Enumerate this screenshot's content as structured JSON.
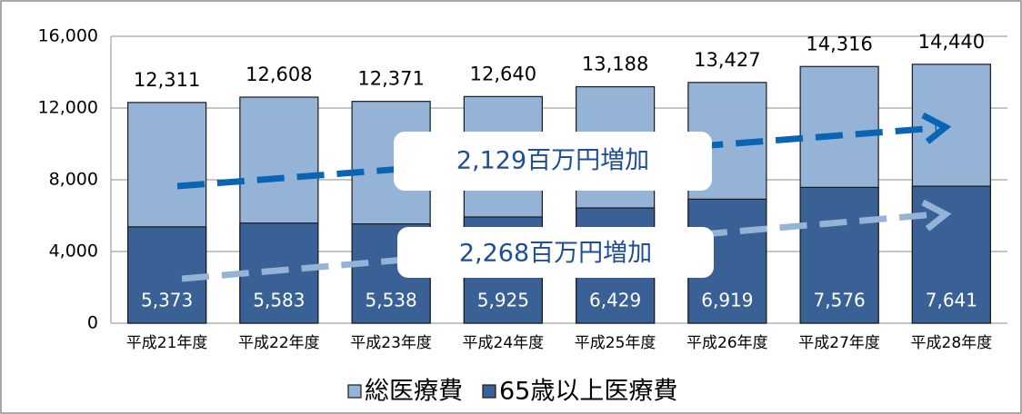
{
  "chart_data": {
    "type": "bar",
    "categories": [
      "平成21年度",
      "平成22年度",
      "平成23年度",
      "平成24年度",
      "平成25年度",
      "平成26年度",
      "平成27年度",
      "平成28年度"
    ],
    "series": [
      {
        "name": "総医療費",
        "color": "#95b3d7",
        "values": [
          12311,
          12608,
          12371,
          12640,
          13188,
          13427,
          14316,
          14440
        ],
        "value_labels": [
          "12,311",
          "12,608",
          "12,371",
          "12,640",
          "13,188",
          "13,427",
          "14,316",
          "14,440"
        ]
      },
      {
        "name": "65歳以上医療費",
        "color": "#3a6195",
        "values": [
          5373,
          5583,
          5538,
          5925,
          6429,
          6919,
          7576,
          7641
        ],
        "value_labels": [
          "5,373",
          "5,583",
          "5,538",
          "5,925",
          "6,429",
          "6,919",
          "7,576",
          "7,641"
        ]
      }
    ],
    "ylim": [
      0,
      16000
    ],
    "yticks": [
      0,
      {
        "value": 4000,
        "label": "4,000"
      },
      {
        "value": 8000,
        "label": "8,000"
      },
      {
        "value": 12000,
        "label": "12,000"
      },
      {
        "value": 16000,
        "label": "16,000"
      }
    ],
    "grid": true,
    "annotations": [
      "2,129百万円増加",
      "2,268百万円増加"
    ]
  }
}
